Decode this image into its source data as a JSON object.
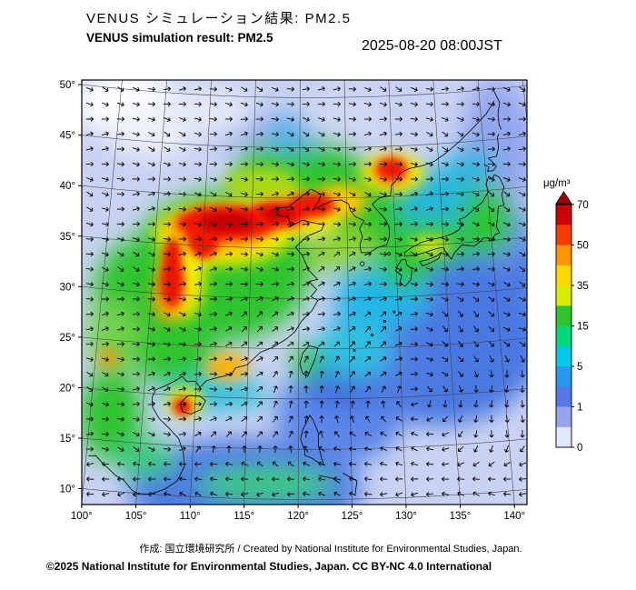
{
  "header": {
    "title_ja": "VENUS シミュレーション結果: PM2.5",
    "title_en": "VENUS simulation result: PM2.5",
    "timestamp": "2025-08-20 08:00JST"
  },
  "footer": {
    "credit_line": "作成:  国立環境研究所 / Created by National Institute for Environmental Studies, Japan.",
    "license_line": "©2025 National Institute for Environmental Studies, Japan. CC BY-NC 4.0 International"
  },
  "chart_data": {
    "type": "heatmap",
    "title": "VENUS simulation result: PM2.5",
    "variable": "PM2.5",
    "unit": "μg/m³",
    "valid_time": "2025-08-20 08:00JST",
    "projection": "conic over East Asia (approx. 100E-143E, 8N-50N)",
    "axes": {
      "lon_ticks": [
        100,
        105,
        110,
        115,
        120,
        125,
        130,
        135,
        140
      ],
      "lat_ticks": [
        50,
        45,
        40,
        35,
        30,
        25,
        20,
        15,
        10
      ],
      "tick_suffix": "°"
    },
    "colorbar": {
      "unit_label": "μg/m³",
      "tick_values": [
        70,
        50,
        35,
        15,
        5,
        1,
        0
      ],
      "segment_colors": [
        "#cf0000",
        "#f63c00",
        "#ff9400",
        "#ffd800",
        "#d8ec00",
        "#2ec42e",
        "#00d87c",
        "#00c8e8",
        "#2898f0",
        "#5577e8",
        "#96a4ee",
        "#e2e7fa"
      ],
      "over_color": "#a80000"
    },
    "background_fill": "#c9d2f2",
    "graticule_color": "#3c3c3c",
    "coastline_color": "#000000",
    "wind_vectors": {
      "shown": true,
      "color": "#000000"
    },
    "blob_format": [
      "lon",
      "lat",
      "rx_deg",
      "ry_deg",
      "color",
      "layer(0 soft,1 mid,2 sharp)",
      "approx_value_ugm3"
    ],
    "pm25_blobs": [
      [
        134,
        26,
        10,
        9,
        "#4a78e2",
        0,
        2
      ],
      [
        139,
        32.5,
        6,
        4,
        "#4a78e2",
        0,
        2
      ],
      [
        141.5,
        35.5,
        2.5,
        3.5,
        "#6b8aea",
        0,
        1.5
      ],
      [
        115,
        11,
        11,
        5,
        "#4f7ce2",
        0,
        2
      ],
      [
        124,
        18.5,
        6,
        5,
        "#5b86e8",
        0,
        2
      ],
      [
        129,
        22.5,
        5,
        4,
        "#4f7ce2",
        0,
        2
      ],
      [
        124,
        21.5,
        3,
        2.5,
        "#3f6fde",
        0,
        3
      ],
      [
        141.5,
        44,
        3.5,
        7,
        "#93a6ee",
        0,
        1
      ],
      [
        128.5,
        30.5,
        4.5,
        3.5,
        "#22b6e6",
        0,
        7
      ],
      [
        125.5,
        25,
        3.5,
        3,
        "#2fc0e2",
        0,
        7
      ],
      [
        134.5,
        39.5,
        4.5,
        3,
        "#28b8d8",
        0,
        8
      ],
      [
        138.5,
        42.5,
        2.5,
        2,
        "#30b4e0",
        0,
        8
      ],
      [
        130.5,
        37,
        2.5,
        2,
        "#28b0e0",
        0,
        8
      ],
      [
        112,
        33,
        8.5,
        7.5,
        "#2ec42e",
        0,
        22
      ],
      [
        104.5,
        29.5,
        5,
        6,
        "#2ec42e",
        0,
        22
      ],
      [
        120,
        42.5,
        6,
        4,
        "#2ec42e",
        0,
        22
      ],
      [
        127,
        38.5,
        3.5,
        4.5,
        "#2ec42e",
        0,
        22
      ],
      [
        133.5,
        35.2,
        4.5,
        2.2,
        "#2ec42e",
        0,
        22
      ],
      [
        139.8,
        37,
        2.5,
        3.5,
        "#2ec42e",
        0,
        22
      ],
      [
        131,
        33.3,
        2.5,
        2.5,
        "#2ec42e",
        0,
        22
      ],
      [
        120.8,
        23.7,
        1.4,
        1.8,
        "#2ec42e",
        0,
        22
      ],
      [
        124.5,
        34.8,
        3.2,
        2.2,
        "#8fd42a",
        0,
        30
      ],
      [
        107.5,
        24,
        4,
        3,
        "#2ec42e",
        0,
        22
      ],
      [
        102,
        17.5,
        3,
        4.5,
        "#2ec42e",
        0,
        22
      ],
      [
        105.5,
        13.5,
        3,
        2,
        "#3ec87c",
        0,
        15
      ],
      [
        117,
        11.5,
        6.5,
        1.8,
        "#3ec87c",
        0,
        15
      ],
      [
        112,
        20.3,
        5,
        1.5,
        "#20c0d8",
        0,
        9
      ],
      [
        101.5,
        25.5,
        2.5,
        3.5,
        "#6fd24e",
        0,
        18
      ],
      [
        119,
        46.5,
        3,
        2,
        "#56b0e8",
        0,
        5
      ],
      [
        113.5,
        46.8,
        3,
        2,
        "#9fb2ee",
        0,
        1
      ],
      [
        100.8,
        48.6,
        5,
        3.2,
        "#ffffff",
        0,
        0
      ],
      [
        103.8,
        46.2,
        4,
        2.6,
        "#eef1fa",
        0,
        0.3
      ],
      [
        109.5,
        48.4,
        4.5,
        2.4,
        "#e4e9f8",
        0,
        0.4
      ],
      [
        125,
        48,
        4,
        2.4,
        "#cfd8f4",
        0,
        0.8
      ],
      [
        112,
        36.3,
        6.5,
        3.2,
        "#f4ec00",
        1,
        42
      ],
      [
        108,
        32,
        2.2,
        4.5,
        "#f4ec00",
        1,
        42
      ],
      [
        119.5,
        38.4,
        4.5,
        2.2,
        "#f4ec00",
        1,
        42
      ],
      [
        116,
        41.3,
        3.5,
        1.8,
        "#a8d818",
        1,
        32
      ],
      [
        124.3,
        39.7,
        2.6,
        1.7,
        "#ffc400",
        1,
        48
      ],
      [
        130,
        42.3,
        3,
        2,
        "#f4ec00",
        1,
        42
      ],
      [
        109,
        19.4,
        1.7,
        1.5,
        "#f4e400",
        1,
        42
      ],
      [
        113,
        23.1,
        2,
        1.3,
        "#ffb000",
        1,
        50
      ],
      [
        101.3,
        23.2,
        0.9,
        0.9,
        "#ff9000",
        1,
        55
      ],
      [
        106.8,
        29.8,
        1.5,
        2.6,
        "#ffa600",
        1,
        55
      ],
      [
        111.5,
        36.8,
        5,
        2.3,
        "#ff9e00",
        1,
        55
      ],
      [
        118.6,
        38.6,
        3,
        1.6,
        "#ff9e00",
        1,
        55
      ],
      [
        129.8,
        42.5,
        1.8,
        1.4,
        "#ff9600",
        1,
        55
      ],
      [
        133.6,
        34.9,
        1.8,
        0.9,
        "#e8e800",
        1,
        40
      ],
      [
        112.5,
        37.4,
        4.8,
        1.7,
        "#f21500",
        2,
        72
      ],
      [
        117.5,
        38.3,
        2.8,
        1.3,
        "#f21500",
        2,
        72
      ],
      [
        121.3,
        39.3,
        2.2,
        1.2,
        "#f21500",
        2,
        72
      ],
      [
        110,
        36.3,
        1.6,
        2.6,
        "#f21500",
        2,
        72
      ],
      [
        107,
        31.5,
        1.1,
        2.8,
        "#ea1500",
        2,
        70
      ],
      [
        106.9,
        33.8,
        0.9,
        1.7,
        "#ea1500",
        2,
        70
      ],
      [
        129.9,
        42.7,
        1.4,
        1.1,
        "#f21500",
        2,
        72
      ],
      [
        108.8,
        18.9,
        0.85,
        0.85,
        "#ea0f00",
        2,
        70
      ],
      [
        112.5,
        37.4,
        2.6,
        1,
        "#c40000",
        2,
        85
      ],
      [
        117.8,
        38.4,
        1.5,
        0.7,
        "#c80000",
        2,
        85
      ]
    ]
  }
}
